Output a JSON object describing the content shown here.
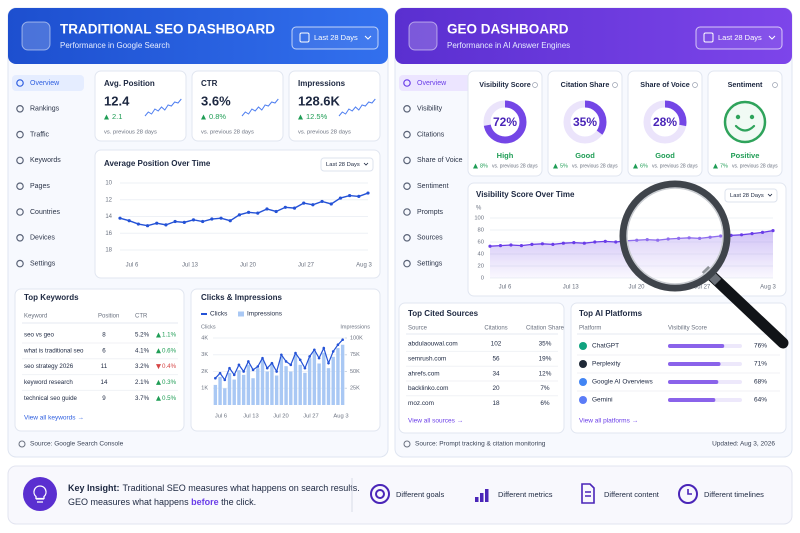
{
  "seo": {
    "title": "TRADITIONAL SEO DASHBOARD",
    "subtitle": "Performance in Google Search",
    "range": "Last 28 Days",
    "nav": [
      "Overview",
      "Rankings",
      "Traffic",
      "Keywords",
      "Pages",
      "Countries",
      "Devices",
      "Settings"
    ],
    "kpis": [
      {
        "label": "Avg. Position",
        "value": "12.4",
        "delta": "2.1",
        "dir": "up",
        "note": "vs. previous 28 days"
      },
      {
        "label": "CTR",
        "value": "3.6%",
        "delta": "0.8%",
        "dir": "up",
        "note": "vs. previous 28 days"
      },
      {
        "label": "Impressions",
        "value": "128.6K",
        "delta": "12.5%",
        "dir": "up",
        "note": "vs. previous 28 days"
      }
    ],
    "position_chart": {
      "title": "Average Position Over Time",
      "range": "Last 28 Days",
      "ylim": [
        18,
        10
      ],
      "yticks": [
        10,
        12,
        14,
        16,
        18
      ],
      "xticks": [
        "Jul 6",
        "Jul 13",
        "Jul 20",
        "Jul 27",
        "Aug 3"
      ],
      "values": [
        14.2,
        14.5,
        14.9,
        15.1,
        14.8,
        15.0,
        14.6,
        14.7,
        14.4,
        14.6,
        14.3,
        14.2,
        14.5,
        13.8,
        13.5,
        13.6,
        13.1,
        13.4,
        12.9,
        13.0,
        12.4,
        12.6,
        12.2,
        12.5,
        11.8,
        11.5,
        11.6,
        11.2
      ]
    },
    "keywords": {
      "title": "Top Keywords",
      "columns": [
        "Keyword",
        "Position",
        "CTR"
      ],
      "rows": [
        {
          "keyword": "seo vs geo",
          "position": "8",
          "ctr": "5.2%",
          "change": "1.1%",
          "dir": "up"
        },
        {
          "keyword": "what is traditional seo",
          "position": "6",
          "ctr": "4.1%",
          "change": "0.6%",
          "dir": "up"
        },
        {
          "keyword": "seo strategy 2026",
          "position": "11",
          "ctr": "3.2%",
          "change": "0.4%",
          "dir": "down"
        },
        {
          "keyword": "keyword research",
          "position": "14",
          "ctr": "2.1%",
          "change": "0.3%",
          "dir": "up"
        },
        {
          "keyword": "technical seo guide",
          "position": "9",
          "ctr": "3.7%",
          "change": "0.5%",
          "dir": "up"
        }
      ],
      "link": "View all keywords →"
    },
    "clicks_chart": {
      "title": "Clicks & Impressions",
      "legend": [
        "Clicks",
        "Impressions"
      ],
      "y_label": "Clicks",
      "y2_label": "Impressions",
      "ylim": [
        0,
        4300
      ],
      "yticks": [
        {
          "value": 1000,
          "label": "1K"
        },
        {
          "value": 2000,
          "label": "2K"
        },
        {
          "value": 3000,
          "label": "3K"
        },
        {
          "value": 4000,
          "label": "4K"
        }
      ],
      "y2lim": [
        0,
        107500
      ],
      "y2ticks": [
        {
          "value": 25000,
          "label": "25K"
        },
        {
          "value": 50000,
          "label": "50K"
        },
        {
          "value": 75000,
          "label": "75K"
        },
        {
          "value": 100000,
          "label": "100K"
        }
      ],
      "xticks": [
        "Jul 6",
        "Jul 13",
        "Jul 20",
        "Jul 27",
        "Aug 3"
      ],
      "clicks": [
        1600,
        1900,
        1500,
        2200,
        1800,
        2400,
        2000,
        2600,
        2100,
        2300,
        2800,
        2200,
        2500,
        2000,
        3000,
        2600,
        2400,
        3100,
        2700,
        2200,
        2900,
        3300,
        2800,
        3400,
        2500,
        3200,
        3600,
        3900
      ],
      "impressions": [
        30000,
        42000,
        25000,
        48000,
        38000,
        52000,
        45000,
        60000,
        40000,
        55000,
        68000,
        50000,
        62000,
        44000,
        72000,
        58000,
        50000,
        75000,
        60000,
        48000,
        70000,
        80000,
        62000,
        78000,
        55000,
        72000,
        85000,
        90000
      ]
    },
    "source": "Source: Google Search Console"
  },
  "geo": {
    "title": "GEO DASHBOARD",
    "subtitle": "Performance in AI Answer Engines",
    "range": "Last 28 Days",
    "nav": [
      "Overview",
      "Visibility",
      "Citations",
      "Share of Voice",
      "Sentiment",
      "Prompts",
      "Sources",
      "Settings"
    ],
    "kpis": [
      {
        "label": "Visibility Score",
        "value": 72,
        "value_label": "72%",
        "rating": "High",
        "delta": "8%",
        "dir": "up",
        "note": "vs. previous 28 days"
      },
      {
        "label": "Citation Share",
        "value": 35,
        "value_label": "35%",
        "rating": "Good",
        "delta": "5%",
        "dir": "up",
        "note": "vs. previous 28 days"
      },
      {
        "label": "Share of Voice",
        "value": 28,
        "value_label": "28%",
        "rating": "Good",
        "delta": "6%",
        "dir": "up",
        "note": "vs. previous 28 days"
      },
      {
        "label": "Sentiment",
        "rating": "Positive",
        "delta": "7%",
        "dir": "up",
        "note": "vs. previous 28 days"
      }
    ],
    "visibility_chart": {
      "title": "Visibility Score Over Time",
      "range": "Last 28 Days",
      "y_label": "%",
      "ylim": [
        0,
        100
      ],
      "yticks": [
        0,
        20,
        40,
        60,
        80,
        100
      ],
      "xticks": [
        "Jul 6",
        "Jul 13",
        "Jul 20",
        "Jul 27",
        "Aug 3"
      ],
      "values": [
        53,
        54,
        55,
        54,
        56,
        57,
        56,
        58,
        59,
        58,
        60,
        61,
        60,
        62,
        63,
        64,
        63,
        65,
        66,
        67,
        66,
        68,
        70,
        71,
        72,
        74,
        76,
        79
      ]
    },
    "sources": {
      "title": "Top Cited Sources",
      "columns": [
        "Source",
        "Citations",
        "Citation Share"
      ],
      "rows": [
        [
          "abdulaouwal.com",
          "102",
          "35%"
        ],
        [
          "semrush.com",
          "56",
          "19%"
        ],
        [
          "ahrefs.com",
          "34",
          "12%"
        ],
        [
          "backlinko.com",
          "20",
          "7%"
        ],
        [
          "moz.com",
          "18",
          "6%"
        ]
      ],
      "link": "View all sources →"
    },
    "platforms": {
      "title": "Top AI Platforms",
      "columns": [
        "Platform",
        "Visibility Score"
      ],
      "rows": [
        {
          "name": "ChatGPT",
          "value": 76,
          "label": "76%"
        },
        {
          "name": "Perplexity",
          "value": 71,
          "label": "71%"
        },
        {
          "name": "Google AI Overviews",
          "value": 68,
          "label": "68%"
        },
        {
          "name": "Gemini",
          "value": 64,
          "label": "64%"
        }
      ],
      "link": "View all platforms →"
    },
    "source": "Source: Prompt tracking & citation monitoring",
    "updated": "Updated: Aug 3, 2026"
  },
  "insight": {
    "label": "Key Insight:",
    "parts": [
      "Traditional SEO measures what happens on search results.",
      "GEO measures what happens ",
      "before",
      " the click."
    ],
    "items": [
      "Different goals",
      "Different metrics",
      "Different content",
      "Different timelines"
    ]
  }
}
